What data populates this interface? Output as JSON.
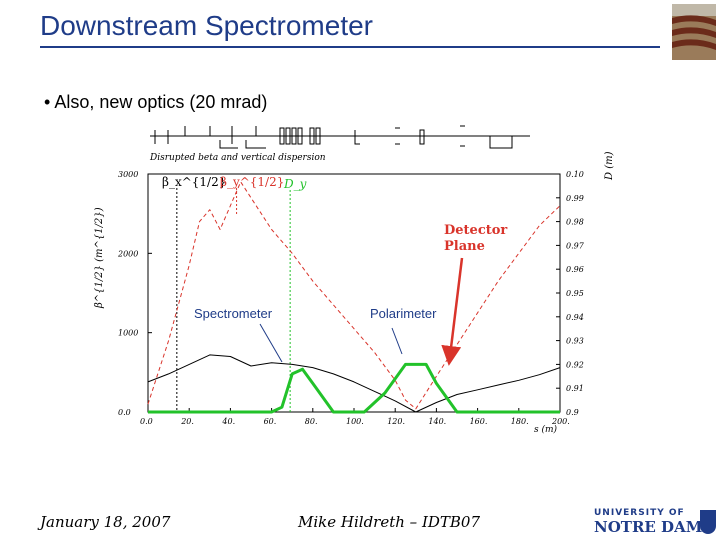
{
  "slide": {
    "title": "Downstream Spectrometer",
    "bullet": "Also, new optics (20 mrad)"
  },
  "figure": {
    "caption": "Disrupted beta and vertical dispersion",
    "left_axis_label": "β^{1/2} (m^{1/2})",
    "right_axis_label": "D (m)",
    "x_axis_label": "s (m)",
    "legend_beta_x": "β_x^{1/2}",
    "legend_beta_y": "β_y^{1/2}",
    "legend_dy": "D_y",
    "label_spectrometer": "Spectrometer",
    "label_polarimeter": "Polarimeter",
    "label_detector_line1": "Detector",
    "label_detector_line2": "Plane",
    "x_ticks": [
      "0.0",
      "20.",
      "40.",
      "60.",
      "80.",
      "100.",
      "120.",
      "140.",
      "160.",
      "180.",
      "200."
    ],
    "left_ticks": [
      "0.0",
      "1000",
      "2000",
      "3000"
    ],
    "right_ticks": [
      "0.9",
      "0.91",
      "0.92",
      "0.93",
      "0.94",
      "0.95",
      "0.96",
      "0.97",
      "0.98",
      "0.99",
      "0.10"
    ],
    "colors": {
      "beta_x": "#000000",
      "beta_y": "#d9342b",
      "dy": "#22c22a",
      "annotation": "#d9342b",
      "label_line": "#1f3c88"
    }
  },
  "chart_data": {
    "type": "line",
    "x_range": [
      0,
      200
    ],
    "y_left_range": [
      0,
      3000
    ],
    "y_right_range": [
      0,
      0.1
    ],
    "series": [
      {
        "name": "β_x^{1/2}",
        "axis": "left",
        "x": [
          0,
          10,
          20,
          30,
          40,
          50,
          60,
          70,
          80,
          90,
          100,
          110,
          120,
          130,
          140,
          150,
          160,
          170,
          180,
          190,
          200
        ],
        "y": [
          380,
          480,
          600,
          720,
          700,
          580,
          620,
          600,
          560,
          480,
          380,
          260,
          140,
          0,
          120,
          220,
          280,
          340,
          400,
          470,
          560
        ]
      },
      {
        "name": "β_y^{1/2}",
        "axis": "left",
        "x": [
          0,
          10,
          20,
          25,
          30,
          35,
          40,
          45,
          50,
          60,
          70,
          80,
          90,
          100,
          110,
          120,
          125,
          130,
          140,
          150,
          160,
          170,
          180,
          190,
          200
        ],
        "y": [
          100,
          900,
          1850,
          2400,
          2550,
          2300,
          2600,
          2900,
          2700,
          2300,
          2000,
          1650,
          1350,
          1050,
          750,
          400,
          150,
          40,
          450,
          850,
          1250,
          1650,
          2000,
          2350,
          2600
        ]
      },
      {
        "name": "D_y",
        "axis": "right",
        "x": [
          0,
          60,
          65,
          70,
          75,
          80,
          90,
          105,
          115,
          125,
          135,
          140,
          150,
          160,
          200
        ],
        "y": [
          0,
          0,
          0.002,
          0.016,
          0.018,
          0.012,
          0,
          0,
          0.008,
          0.02,
          0.02,
          0.012,
          0,
          0,
          0
        ]
      }
    ]
  }
}
